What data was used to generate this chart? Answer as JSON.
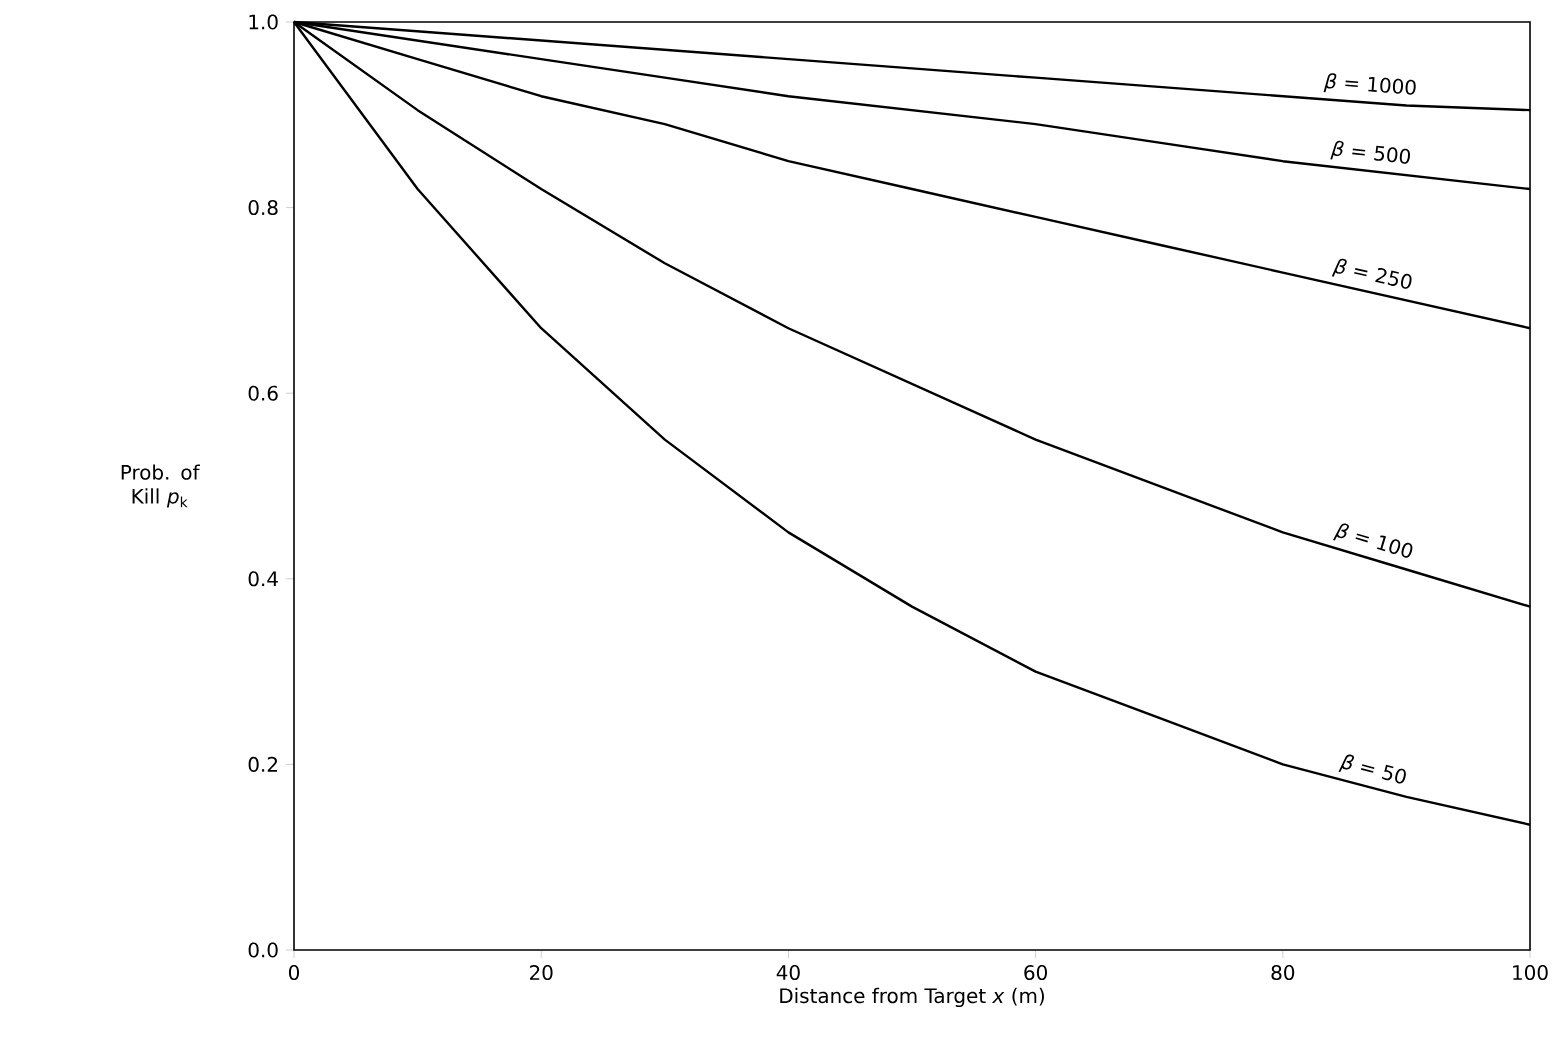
{
  "chart_data": {
    "type": "line",
    "xlabel": "Distance from Target *x* (m)",
    "ylabel": "Prob. of Kill *p*$_{k}$",
    "x": [
      0,
      10,
      20,
      30,
      40,
      50,
      60,
      70,
      80,
      90,
      100
    ],
    "series": [
      {
        "name": "*β* = 1000",
        "color": "#000000",
        "values": [
          1,
          0.99,
          0.98,
          0.97,
          0.96,
          0.95,
          0.94,
          0.93,
          0.92,
          0.91,
          0.905
        ]
      },
      {
        "name": "*β* = 500",
        "color": "#000000",
        "values": [
          1,
          0.98,
          0.96,
          0.94,
          0.92,
          0.905,
          0.89,
          0.87,
          0.85,
          0.835,
          0.82
        ]
      },
      {
        "name": "*β* = 250",
        "color": "#000000",
        "values": [
          1,
          0.96,
          0.92,
          0.89,
          0.85,
          0.82,
          0.79,
          0.76,
          0.73,
          0.7,
          0.67
        ]
      },
      {
        "name": "*β* = 100",
        "color": "#000000",
        "values": [
          1,
          0.905,
          0.82,
          0.74,
          0.67,
          0.61,
          0.55,
          0.5,
          0.45,
          0.41,
          0.37
        ]
      },
      {
        "name": "*β* = 50",
        "color": "#000000",
        "values": [
          1,
          0.82,
          0.67,
          0.55,
          0.45,
          0.37,
          0.3,
          0.25,
          0.2,
          0.165,
          0.135
        ]
      }
    ],
    "xlim": [
      0,
      100
    ],
    "ylim": [
      0,
      1
    ],
    "xticks": [
      0,
      20,
      40,
      60,
      80,
      100
    ],
    "yticks": [
      {
        "value": 0,
        "label": "0.0"
      },
      {
        "value": 0.2,
        "label": "0.2"
      },
      {
        "value": 0.4,
        "label": "0.4"
      },
      {
        "value": 0.6,
        "label": "0.6"
      },
      {
        "value": 0.8,
        "label": "0.8"
      },
      {
        "value": 1,
        "label": "1.0"
      }
    ]
  }
}
